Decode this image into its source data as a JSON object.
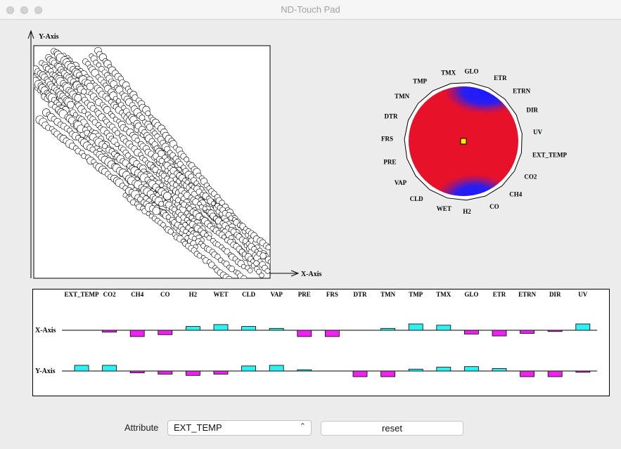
{
  "window": {
    "title": "ND-Touch Pad"
  },
  "scatter": {
    "y_axis_label": "Y-Axis",
    "x_axis_label": "X-Axis"
  },
  "radar": {
    "attributes": [
      "GLO",
      "ETR",
      "ETRN",
      "DIR",
      "UV",
      "EXT_TEMP",
      "CO2",
      "CH4",
      "CO",
      "H2",
      "WET",
      "CLD",
      "VAP",
      "PRE",
      "FRS",
      "DTR",
      "TMN",
      "TMP",
      "TMX"
    ],
    "colors": {
      "dominant": "#e8112a",
      "secondary": "#1a1aff",
      "marker": "#ffee00"
    }
  },
  "bars": {
    "row_labels": [
      "X-Axis",
      "Y-Axis"
    ],
    "columns": [
      "EXT_TEMP",
      "CO2",
      "CH4",
      "CO",
      "H2",
      "WET",
      "CLD",
      "VAP",
      "PRE",
      "FRS",
      "DTR",
      "TMN",
      "TMP",
      "TMX",
      "GLO",
      "ETR",
      "ETRN",
      "DIR",
      "UV"
    ],
    "x_axis_weights": [
      0,
      -0.3,
      -1,
      -0.7,
      0.6,
      0.9,
      0.6,
      0.3,
      -1,
      -1,
      0,
      0.3,
      1,
      0.8,
      -0.6,
      -0.9,
      -0.5,
      -0.2,
      1
    ],
    "y_axis_weights": [
      0.9,
      0.9,
      -0.3,
      -0.5,
      -0.7,
      -0.5,
      0.8,
      0.9,
      0.2,
      0,
      -0.9,
      -0.9,
      0.3,
      0.6,
      0.7,
      0.4,
      -0.9,
      -0.9,
      -0.2
    ],
    "colors": {
      "positive": "#2ef0f0",
      "negative": "#ee22ee"
    }
  },
  "controls": {
    "attribute_label": "Attribute",
    "attribute_value": "EXT_TEMP",
    "reset_label": "reset"
  }
}
